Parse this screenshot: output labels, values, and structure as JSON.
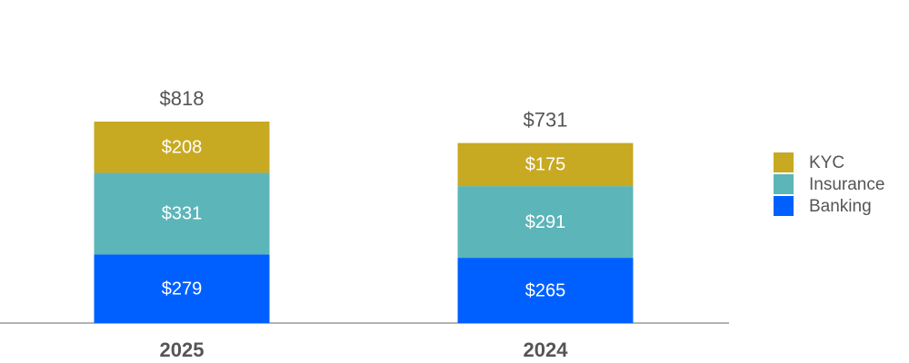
{
  "chart_data": {
    "type": "stacked-bar",
    "categories": [
      "2025",
      "2024"
    ],
    "series": [
      {
        "name": "Banking",
        "color": "#0060ff",
        "values": [
          279,
          265
        ],
        "value_labels": [
          "$279",
          "$265"
        ]
      },
      {
        "name": "Insurance",
        "color": "#5cb5b9",
        "values": [
          331,
          291
        ],
        "value_labels": [
          "$331",
          "$291"
        ]
      },
      {
        "name": "KYC",
        "color": "#c8a922",
        "values": [
          208,
          175
        ],
        "value_labels": [
          "$208",
          "$175"
        ]
      }
    ],
    "totals": [
      818,
      731
    ],
    "total_labels": [
      "$818",
      "$731"
    ]
  }
}
